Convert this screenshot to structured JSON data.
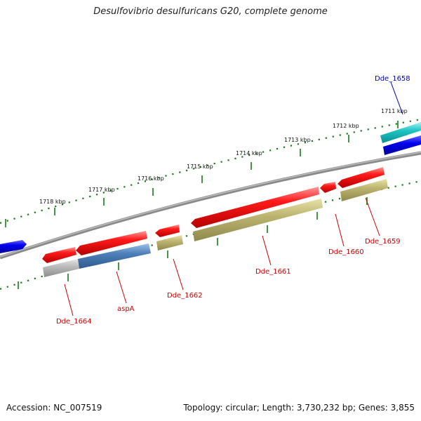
{
  "title": "Desulfovibrio desulfuricans G20, complete genome",
  "footer": {
    "accession": "Accession: NC_007519",
    "topology": "Topology: circular; Length: 3,730,232 bp; Genes: 3,855"
  },
  "colors": {
    "backbone": "#808080",
    "tick": "#1a7a1a",
    "gene_label_red": "#cc0000",
    "gene_label_blue": "#0000aa"
  },
  "ruler_labels": [
    "1711 kbp",
    "1712 kbp",
    "1713 kbp",
    "1714 kbp",
    "1715 kbp",
    "1716 kbp",
    "1717 kbp",
    "1718 kbp"
  ],
  "gene_labels": [
    {
      "name": "Dde_1658",
      "color": "#0000aa"
    },
    {
      "name": "Dde_1659",
      "color": "#cc0000"
    },
    {
      "name": "Dde_1660",
      "color": "#cc0000"
    },
    {
      "name": "Dde_1661",
      "color": "#cc0000"
    },
    {
      "name": "Dde_1662",
      "color": "#cc0000"
    },
    {
      "name": "aspA",
      "color": "#cc0000"
    },
    {
      "name": "Dde_1664",
      "color": "#cc0000"
    }
  ]
}
